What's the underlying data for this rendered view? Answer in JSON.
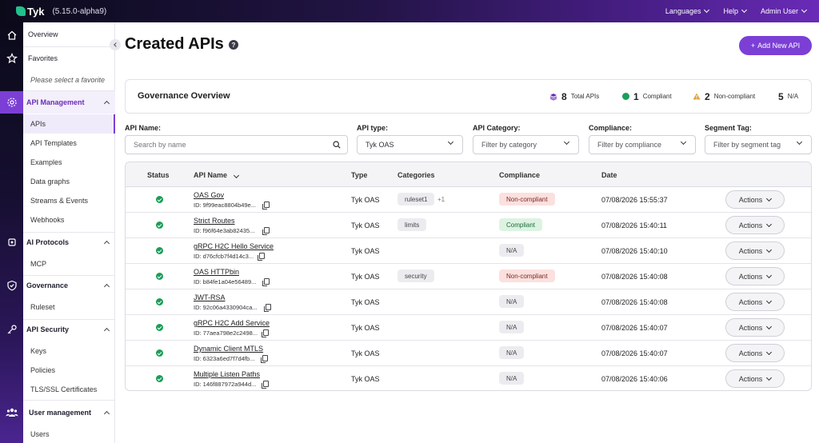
{
  "header": {
    "logo_text": "Tyk",
    "version": "(5.15.0-alpha9)",
    "nav": [
      "Languages",
      "Help",
      "Admin User"
    ]
  },
  "sidebar": {
    "overview": "Overview",
    "favorites": "Favorites",
    "favorites_hint": "Please select a favorite",
    "groups": [
      {
        "label": "API Management",
        "items": [
          "APIs",
          "API Templates",
          "Examples",
          "Data graphs",
          "Streams & Events",
          "Webhooks"
        ]
      },
      {
        "label": "AI Protocols",
        "items": [
          "MCP"
        ]
      },
      {
        "label": "Governance",
        "items": [
          "Ruleset"
        ]
      },
      {
        "label": "API Security",
        "items": [
          "Keys",
          "Policies",
          "TLS/SSL Certificates"
        ]
      },
      {
        "label": "User management",
        "items": [
          "Users"
        ]
      }
    ]
  },
  "main": {
    "title": "Created APIs",
    "help_glyph": "?",
    "add_button": "Add New API",
    "add_glyph": "+"
  },
  "governance": {
    "title": "Governance Overview",
    "stats": [
      {
        "value": "8",
        "label": "Total APIs"
      },
      {
        "value": "1",
        "label": "Compliant"
      },
      {
        "value": "2",
        "label": "Non-compliant"
      },
      {
        "value": "5",
        "label": "N/A"
      }
    ]
  },
  "filters": {
    "api_name": {
      "label": "API Name:",
      "placeholder": "Search by name"
    },
    "api_type": {
      "label": "API type:",
      "value": "Tyk OAS"
    },
    "api_category": {
      "label": "API Category:",
      "value": "Filter by category"
    },
    "compliance": {
      "label": "Compliance:",
      "value": "Filter by compliance"
    },
    "segment_tag": {
      "label": "Segment Tag:",
      "value": "Filter by segment tag"
    }
  },
  "table": {
    "columns": [
      "Status",
      "API Name",
      "Type",
      "Categories",
      "Compliance",
      "Date"
    ],
    "action_label": "Actions",
    "rows": [
      {
        "name": "OAS Gov",
        "id": "ID: 9f99eac8804b49e...",
        "type": "Tyk OAS",
        "category": "ruleset1",
        "more": "+1",
        "compliance": "Non-compliant",
        "date": "07/08/2026 15:55:37"
      },
      {
        "name": "Strict Routes",
        "id": "ID: f96f64e3ab82435...",
        "type": "Tyk OAS",
        "category": "limits",
        "more": "",
        "compliance": "Compliant",
        "date": "07/08/2026 15:40:11"
      },
      {
        "name": "gRPC H2C Hello Service",
        "id": "ID: d76cfcb7f4d14c3...",
        "type": "Tyk OAS",
        "category": "",
        "more": "",
        "compliance": "N/A",
        "date": "07/08/2026 15:40:10"
      },
      {
        "name": "OAS HTTPbin",
        "id": "ID: b84fe1a04e56489...",
        "type": "Tyk OAS",
        "category": "security",
        "more": "",
        "compliance": "Non-compliant",
        "date": "07/08/2026 15:40:08"
      },
      {
        "name": "JWT-RSA",
        "id": "ID: 92c06a4330904ca...",
        "type": "Tyk OAS",
        "category": "",
        "more": "",
        "compliance": "N/A",
        "date": "07/08/2026 15:40:08"
      },
      {
        "name": "gRPC H2C Add Service",
        "id": "ID: 77aea798e2c2498...",
        "type": "Tyk OAS",
        "category": "",
        "more": "",
        "compliance": "N/A",
        "date": "07/08/2026 15:40:07"
      },
      {
        "name": "Dynamic Client MTLS",
        "id": "ID: 6323a6ed7f7d4fb...",
        "type": "Tyk OAS",
        "category": "",
        "more": "",
        "compliance": "N/A",
        "date": "07/08/2026 15:40:07"
      },
      {
        "name": "Multiple Listen Paths",
        "id": "ID: 146f887972a944d...",
        "type": "Tyk OAS",
        "category": "",
        "more": "",
        "compliance": "N/A",
        "date": "07/08/2026 15:40:06"
      }
    ]
  },
  "colors": {
    "accent": "#7b3fd6",
    "compliant": "#1a9e58",
    "non_compliant": "#e0a23a"
  }
}
